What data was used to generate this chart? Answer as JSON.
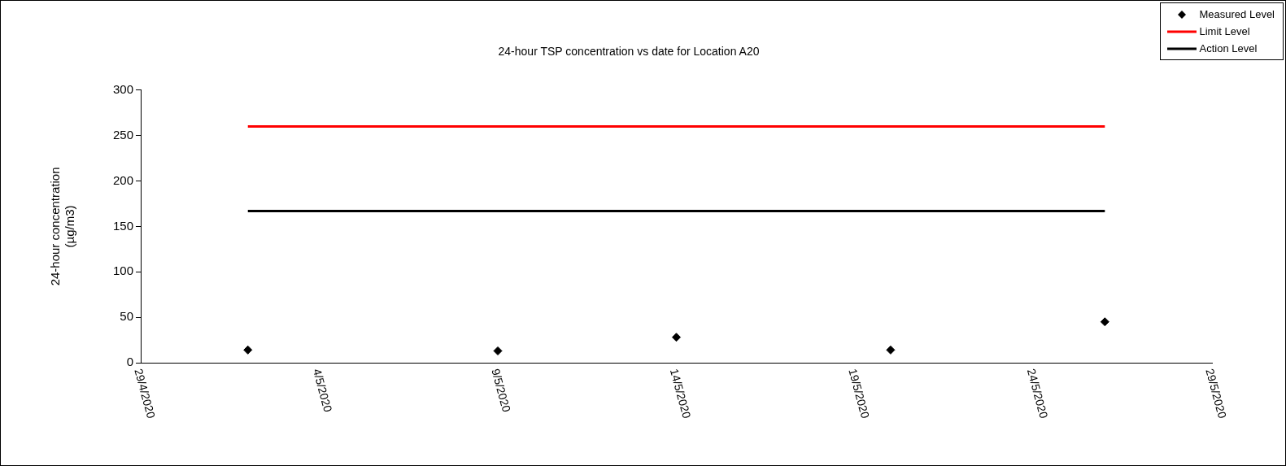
{
  "chart_data": {
    "type": "scatter",
    "title": "24-hour TSP concentration vs date for Location A20",
    "ylabel": "24-hour concentration\n(µg/m3)",
    "x": [
      "2020-05-02",
      "2020-05-09",
      "2020-05-14",
      "2020-05-20",
      "2020-05-26"
    ],
    "series": [
      {
        "name": "Measured Level",
        "color": "#000000",
        "marker": "diamond",
        "values": [
          14,
          13,
          28,
          14,
          45
        ]
      },
      {
        "name": "Limit Level",
        "type": "line",
        "color": "#ff0000",
        "marker": "none",
        "x": [
          "2020-05-02",
          "2020-05-26"
        ],
        "values": [
          260,
          260
        ]
      },
      {
        "name": "Action Level",
        "type": "line",
        "color": "#000000",
        "marker": "none",
        "x": [
          "2020-05-02",
          "2020-05-26"
        ],
        "values": [
          167,
          167
        ]
      }
    ],
    "xlim": [
      "2020-04-29",
      "2020-05-29"
    ],
    "xticks": [
      {
        "value": "2020-04-29",
        "label": "29/4/2020"
      },
      {
        "value": "2020-05-04",
        "label": "4/5/2020"
      },
      {
        "value": "2020-05-09",
        "label": "9/5/2020"
      },
      {
        "value": "2020-05-14",
        "label": "14/5/2020"
      },
      {
        "value": "2020-05-19",
        "label": "19/5/2020"
      },
      {
        "value": "2020-05-24",
        "label": "24/5/2020"
      },
      {
        "value": "2020-05-29",
        "label": "29/5/2020"
      }
    ],
    "ylim": [
      0,
      300
    ],
    "yticks": [
      0,
      50,
      100,
      150,
      200,
      250,
      300
    ],
    "grid": false,
    "legend": "top right",
    "line_style": "solid"
  }
}
